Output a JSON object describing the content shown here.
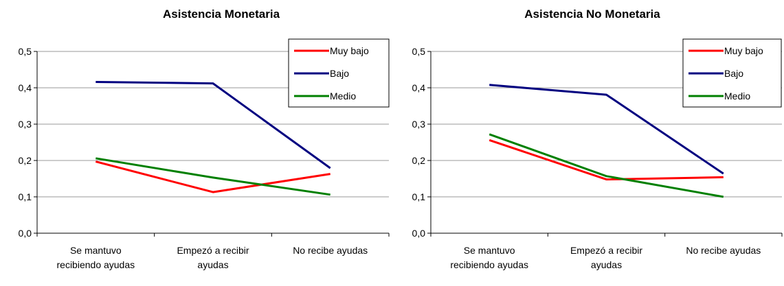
{
  "chart_data": [
    {
      "type": "line",
      "title": "Asistencia Monetaria",
      "xlabel": "",
      "ylabel": "",
      "ylim": [
        0,
        0.5
      ],
      "yticks": [
        "0,0",
        "0,1",
        "0,2",
        "0,3",
        "0,4",
        "0,5"
      ],
      "categories": [
        [
          "Se mantuvo",
          "recibiendo ayudas"
        ],
        [
          "Empezó a recibir",
          "ayudas"
        ],
        [
          "No recibe ayudas"
        ]
      ],
      "grid": true,
      "legend_position": "top-right",
      "series": [
        {
          "name": "Muy bajo",
          "color": "#ff0000",
          "values": [
            0.197,
            0.113,
            0.163
          ]
        },
        {
          "name": "Bajo",
          "color": "#000080",
          "values": [
            0.416,
            0.412,
            0.179
          ]
        },
        {
          "name": "Medio",
          "color": "#008000",
          "values": [
            0.206,
            0.153,
            0.106
          ]
        }
      ]
    },
    {
      "type": "line",
      "title": "Asistencia No Monetaria",
      "xlabel": "",
      "ylabel": "",
      "ylim": [
        0,
        0.5
      ],
      "yticks": [
        "0,0",
        "0,1",
        "0,2",
        "0,3",
        "0,4",
        "0,5"
      ],
      "categories": [
        [
          "Se mantuvo",
          "recibiendo ayudas"
        ],
        [
          "Empezó a recibir",
          "ayudas"
        ],
        [
          "No recibe ayudas"
        ]
      ],
      "grid": true,
      "legend_position": "top-right",
      "series": [
        {
          "name": "Muy bajo",
          "color": "#ff0000",
          "values": [
            0.256,
            0.148,
            0.154
          ]
        },
        {
          "name": "Bajo",
          "color": "#000080",
          "values": [
            0.408,
            0.381,
            0.164
          ]
        },
        {
          "name": "Medio",
          "color": "#008000",
          "values": [
            0.272,
            0.157,
            0.1
          ]
        }
      ]
    }
  ]
}
